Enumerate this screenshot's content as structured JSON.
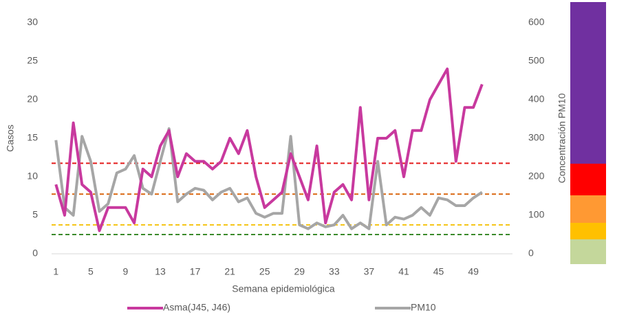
{
  "chart_data": {
    "type": "line",
    "x_label": "Semana epidemiológica",
    "y_label": "Casos",
    "y2_label": "Concentración PM10",
    "categories": [
      1,
      null,
      null,
      null,
      5,
      null,
      null,
      null,
      9,
      null,
      null,
      null,
      13,
      null,
      null,
      null,
      17,
      null,
      null,
      null,
      21,
      null,
      null,
      null,
      25,
      null,
      null,
      null,
      29,
      null,
      null,
      null,
      33,
      null,
      null,
      null,
      37,
      null,
      null,
      null,
      41,
      null,
      null,
      null,
      45,
      null,
      null,
      null,
      49,
      null,
      null,
      null,
      null
    ],
    "series": [
      {
        "name": "Asma(J45, J46)",
        "color": "#c8399e",
        "values": [
          9,
          5,
          17,
          9,
          8,
          3,
          6,
          6,
          6,
          4,
          11,
          10,
          14,
          16,
          10,
          13,
          12,
          12,
          11,
          12,
          15,
          13,
          16,
          10,
          6,
          7,
          8,
          13,
          10,
          7,
          14,
          4,
          8,
          9,
          7,
          19,
          7,
          15,
          15,
          16,
          10,
          16,
          16,
          20,
          22,
          24,
          12,
          19,
          19,
          22,
          null,
          null,
          null
        ]
      },
      {
        "name": "PM10",
        "color": "#a6a6a6",
        "axis": "y2",
        "values": [
          295,
          120,
          100,
          305,
          240,
          110,
          130,
          210,
          220,
          255,
          170,
          155,
          240,
          325,
          135,
          155,
          170,
          165,
          140,
          160,
          170,
          135,
          145,
          105,
          95,
          105,
          105,
          305,
          75,
          65,
          80,
          70,
          75,
          100,
          65,
          80,
          65,
          240,
          75,
          95,
          90,
          100,
          120,
          100,
          145,
          140,
          125,
          125,
          145,
          160,
          null,
          null,
          null
        ]
      }
    ],
    "reference_lines": [
      {
        "value": 235,
        "color": "#e41a1a",
        "axis": "y2"
      },
      {
        "value": 155,
        "color": "#d9650f",
        "axis": "y2"
      },
      {
        "value": 75,
        "color": "#f5c518",
        "axis": "y2"
      },
      {
        "value": 50,
        "color": "#3a8a2a",
        "axis": "y2"
      }
    ],
    "ylim": [
      0,
      30
    ],
    "yticks": [
      0,
      5,
      10,
      15,
      20,
      25,
      30
    ],
    "y2lim": [
      0,
      600
    ],
    "y2ticks": [
      0,
      100,
      200,
      300,
      400,
      500,
      600
    ],
    "grid": false,
    "legend": "bottom"
  }
}
